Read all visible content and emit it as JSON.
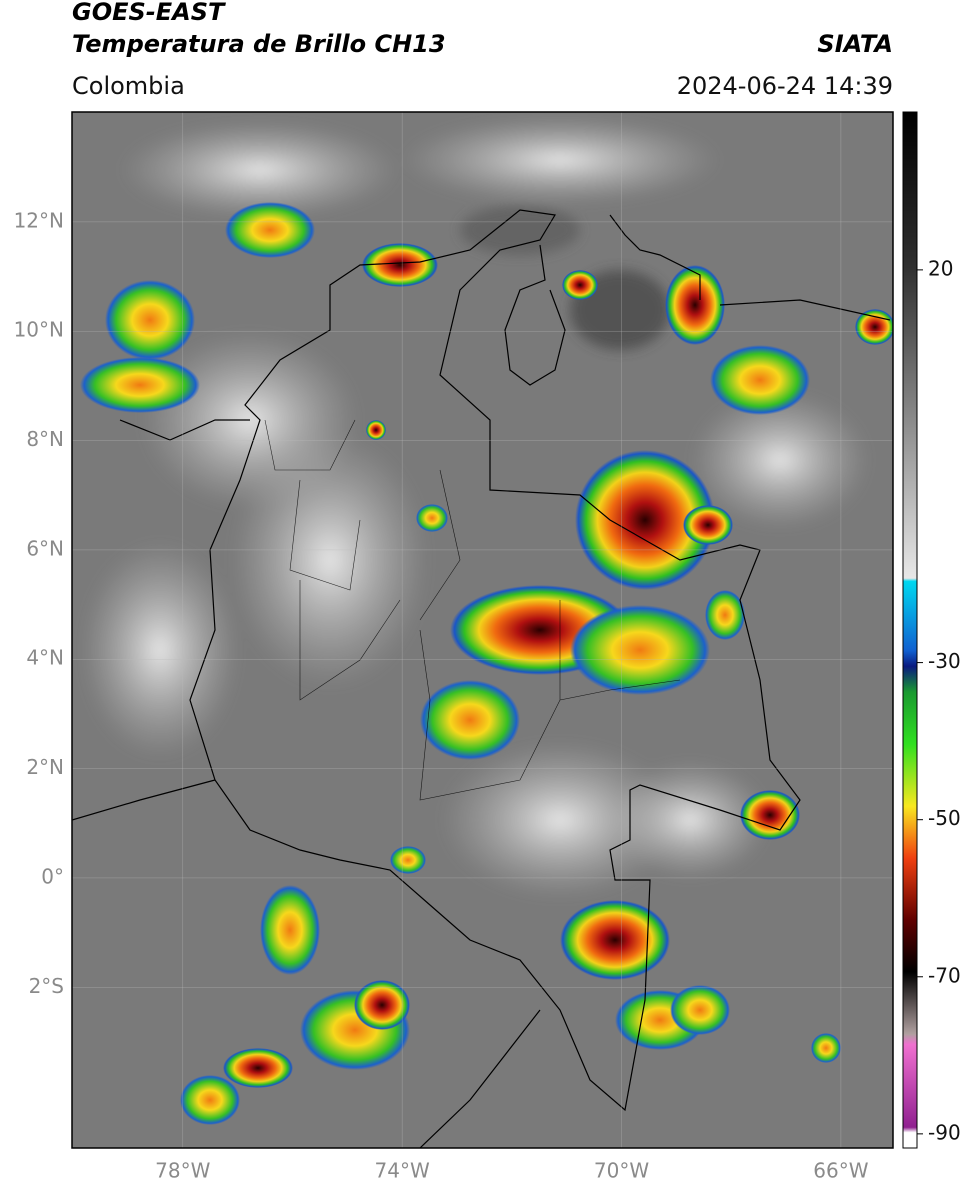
{
  "header": {
    "title_line1": "GOES-EAST",
    "title_line2": "Temperatura de Brillo CH13",
    "source": "SIATA",
    "region": "Colombia",
    "datetime": "2024-06-24 14:39"
  },
  "map": {
    "lat_range": [
      -4.94,
      14.01
    ],
    "lon_range": [
      -80.02,
      -65.05
    ],
    "lat_ticks": [
      {
        "value": 12,
        "label": "12°N"
      },
      {
        "value": 10,
        "label": "10°N"
      },
      {
        "value": 8,
        "label": "8°N"
      },
      {
        "value": 6,
        "label": "6°N"
      },
      {
        "value": 4,
        "label": "4°N"
      },
      {
        "value": 2,
        "label": "2°N"
      },
      {
        "value": 0,
        "label": "0°"
      },
      {
        "value": -2,
        "label": "2°S"
      }
    ],
    "lon_ticks": [
      {
        "value": -78,
        "label": "78°W"
      },
      {
        "value": -74,
        "label": "74°W"
      },
      {
        "value": -70,
        "label": "70°W"
      },
      {
        "value": -66,
        "label": "66°W"
      }
    ]
  },
  "colorbar": {
    "range": [
      40.1,
      -91.8
    ],
    "ticks": [
      20,
      -30,
      -50,
      -70,
      -90
    ]
  }
}
